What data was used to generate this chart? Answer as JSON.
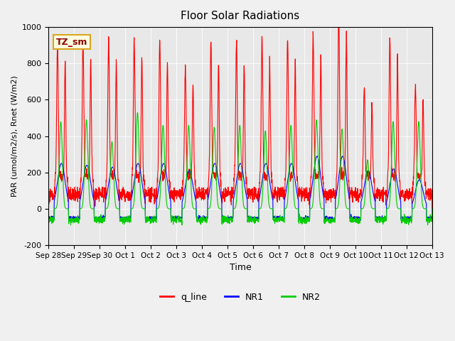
{
  "title": "Floor Solar Radiations",
  "xlabel": "Time",
  "ylabel": "PAR (umol/m2/s), Rnet (W/m2)",
  "ylim": [
    -200,
    1000
  ],
  "yticks": [
    -200,
    0,
    200,
    400,
    600,
    800,
    1000
  ],
  "x_tick_labels": [
    "Sep 28",
    "Sep 29",
    "Sep 30",
    "Oct 1",
    "Oct 2",
    "Oct 3",
    "Oct 4",
    "Oct 5",
    "Oct 6",
    "Oct 7",
    "Oct 8",
    "Oct 9",
    "Oct 10",
    "Oct 11",
    "Oct 12",
    "Oct 13"
  ],
  "annotation_text": "TZ_sm",
  "legend_entries": [
    "q_line",
    "NR1",
    "NR2"
  ],
  "legend_colors": [
    "#ff0000",
    "#0000ff",
    "#00cc00"
  ],
  "line_colors": {
    "q_line": "#ff0000",
    "NR1": "#0000ff",
    "NR2": "#00cc00"
  },
  "background_color": "#e8e8e8",
  "fig_background": "#f0f0f0",
  "n_days": 15,
  "pts_per_day": 144,
  "seed": 42
}
